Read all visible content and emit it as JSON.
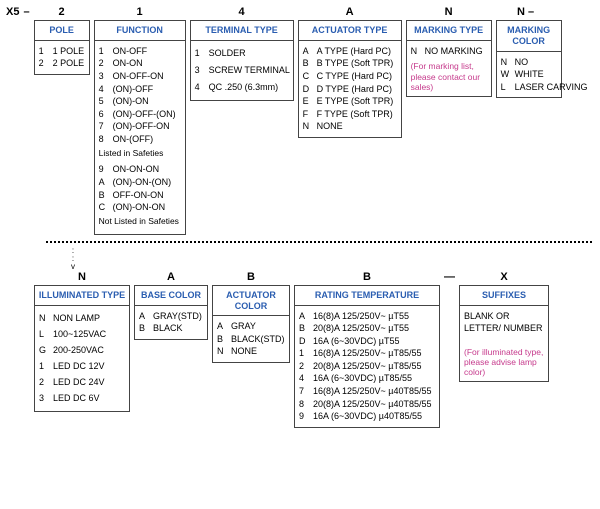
{
  "row1": {
    "prefix": "X5",
    "g0": {
      "code": "2",
      "header": "POLE",
      "opts": [
        [
          "1",
          "1 POLE"
        ],
        [
          "2",
          "2 POLE"
        ]
      ]
    },
    "g1": {
      "code": "1",
      "header": "FUNCTION",
      "opts": [
        [
          "1",
          "ON-OFF"
        ],
        [
          "2",
          "ON-ON"
        ],
        [
          "3",
          "ON-OFF-ON"
        ],
        [
          "4",
          "(ON)-OFF"
        ],
        [
          "5",
          "(ON)-ON"
        ],
        [
          "6",
          "(ON)-OFF-(ON)"
        ],
        [
          "7",
          "(ON)-OFF-ON"
        ],
        [
          "8",
          "ON-(OFF)"
        ]
      ],
      "sub1": "Listed in Safeties",
      "opts2": [
        [
          "9",
          "ON-ON-ON"
        ],
        [
          "A",
          "(ON)-ON-(ON)"
        ],
        [
          "B",
          "OFF-ON-ON"
        ],
        [
          "C",
          "(ON)-ON-ON"
        ]
      ],
      "sub2": "Not Listed in Safeties"
    },
    "g2": {
      "code": "4",
      "header": "TERMINAL TYPE",
      "opts": [
        [
          "1",
          "SOLDER"
        ],
        [
          "3",
          "SCREW TERMINAL"
        ],
        [
          "4",
          "QC .250  (6.3mm)"
        ]
      ]
    },
    "g3": {
      "code": "A",
      "header": "ACTUATOR TYPE",
      "opts": [
        [
          "A",
          "A TYPE (Hard PC)"
        ],
        [
          "B",
          "B TYPE (Soft TPR)"
        ],
        [
          "C",
          "C TYPE (Hard PC)"
        ],
        [
          "D",
          "D TYPE (Hard PC)"
        ],
        [
          "E",
          "E TYPE (Soft TPR)"
        ],
        [
          "F",
          "F TYPE (Soft TPR)"
        ],
        [
          "N",
          "NONE"
        ]
      ]
    },
    "g4": {
      "code": "N",
      "header": "MARKING TYPE",
      "opts": [
        [
          "N",
          "NO MARKING"
        ]
      ],
      "note": "(For marking list, please contact our sales)"
    },
    "g5": {
      "code": "N",
      "header": "MARKING COLOR",
      "opts": [
        [
          "N",
          "NO"
        ],
        [
          "W",
          "WHITE"
        ],
        [
          "L",
          "LASER CARVING"
        ]
      ]
    }
  },
  "row2": {
    "g0": {
      "code": "N",
      "header": "ILLUMINATED TYPE",
      "opts": [
        [
          "N",
          "NON LAMP"
        ],
        [
          "L",
          "100~125VAC"
        ],
        [
          "G",
          "200-250VAC"
        ],
        [
          "1",
          "LED  DC 12V"
        ],
        [
          "2",
          "LED  DC 24V"
        ],
        [
          "3",
          "LED  DC 6V"
        ]
      ]
    },
    "g1": {
      "code": "A",
      "header": "BASE COLOR",
      "opts": [
        [
          "A",
          "GRAY(STD)"
        ],
        [
          "B",
          "BLACK"
        ]
      ]
    },
    "g2": {
      "code": "B",
      "header": "ACTUATOR COLOR",
      "opts": [
        [
          "A",
          "GRAY"
        ],
        [
          "B",
          "BLACK(STD)"
        ],
        [
          "N",
          "NONE"
        ]
      ]
    },
    "g3": {
      "code": "B",
      "header": "RATING TEMPERATURE",
      "opts": [
        [
          "A",
          "16(8)A 125/250V~ µT55"
        ],
        [
          "B",
          "20(8)A 125/250V~ µT55"
        ],
        [
          "D",
          "16A (6~30VDC) µT55"
        ],
        [
          "1",
          "16(8)A 125/250V~ µT85/55"
        ],
        [
          "2",
          "20(8)A 125/250V~ µT85/55"
        ],
        [
          "4",
          "16A (6~30VDC) µT85/55"
        ],
        [
          "7",
          "16(8)A 125/250V~ µ40T85/55"
        ],
        [
          "8",
          "20(8)A 125/250V~ µ40T85/55"
        ],
        [
          "9",
          "16A (6~30VDC) µ40T85/55"
        ]
      ]
    },
    "g4": {
      "code": "X",
      "header": "SUFFIXES",
      "body": "BLANK OR LETTER/ NUMBER",
      "note": "(For illuminated type, please advise lamp color)"
    }
  }
}
